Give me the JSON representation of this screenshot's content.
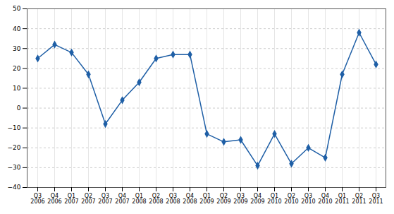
{
  "chart_data": {
    "type": "line",
    "categories": [
      "Q3\n2006",
      "Q4\n2006",
      "Q1\n2007",
      "Q2\n2007",
      "Q3\n2007",
      "Q4\n2007",
      "Q1\n2008",
      "Q2\n2008",
      "Q3\n2008",
      "Q4\n2008",
      "Q1\n2009",
      "Q2\n2009",
      "Q3\n2009",
      "Q4\n2009",
      "Q1\n2010",
      "Q2\n2010",
      "Q3\n2010",
      "Q4\n2010",
      "Q1\n2011",
      "Q2\n2011",
      "Q3\n2011"
    ],
    "values": [
      25,
      32,
      28,
      17,
      -8,
      4,
      13,
      25,
      27,
      27,
      -13,
      -17,
      -16,
      -29,
      -13,
      -28,
      -20,
      -25,
      17,
      38,
      22
    ],
    "color": "#1f5fa6",
    "marker": "diamond",
    "ylim": [
      -40,
      50
    ],
    "yticks": [
      -40,
      -30,
      -20,
      -10,
      0,
      10,
      20,
      30,
      40,
      50
    ],
    "grid": true
  }
}
